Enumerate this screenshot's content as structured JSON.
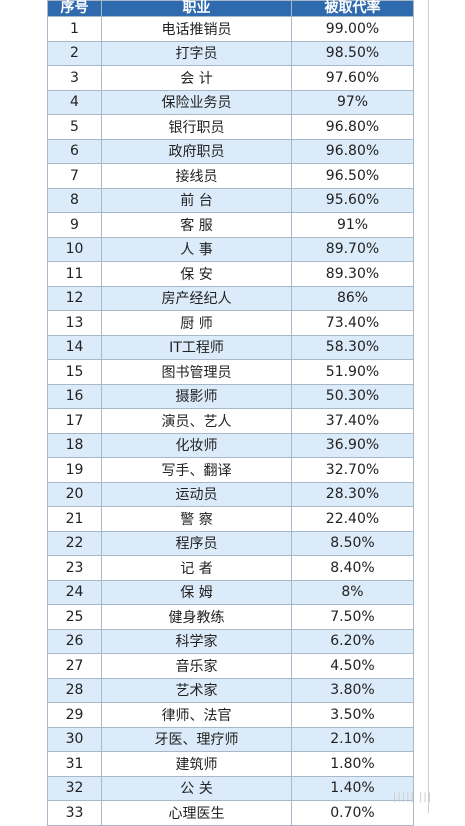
{
  "headers": [
    "序号",
    "职业",
    "被取代率"
  ],
  "rows": [
    [
      "1",
      "电话推销员",
      "99.00%"
    ],
    [
      "2",
      "打字员",
      "98.50%"
    ],
    [
      "3",
      "会 计",
      "97.60%"
    ],
    [
      "4",
      "保险业务员",
      "97%"
    ],
    [
      "5",
      "银行职员",
      "96.80%"
    ],
    [
      "6",
      "政府职员",
      "96.80%"
    ],
    [
      "7",
      "接线员",
      "96.50%"
    ],
    [
      "8",
      "前 台",
      "95.60%"
    ],
    [
      "9",
      "客 服",
      "91%"
    ],
    [
      "10",
      "人 事",
      "89.70%"
    ],
    [
      "11",
      "保 安",
      "89.30%"
    ],
    [
      "12",
      "房产经纪人",
      "86%"
    ],
    [
      "13",
      "厨 师",
      "73.40%"
    ],
    [
      "14",
      "IT工程师",
      "58.30%"
    ],
    [
      "15",
      "图书管理员",
      "51.90%"
    ],
    [
      "16",
      "摄影师",
      "50.30%"
    ],
    [
      "17",
      "演员、艺人",
      "37.40%"
    ],
    [
      "18",
      "化妆师",
      "36.90%"
    ],
    [
      "19",
      "写手、翻译",
      "32.70%"
    ],
    [
      "20",
      "运动员",
      "28.30%"
    ],
    [
      "21",
      "警 察",
      "22.40%"
    ],
    [
      "22",
      "程序员",
      "8.50%"
    ],
    [
      "23",
      "记 者",
      "8.40%"
    ],
    [
      "24",
      "保 姆",
      "8%"
    ],
    [
      "25",
      "健身教练",
      "7.50%"
    ],
    [
      "26",
      "科学家",
      "6.20%"
    ],
    [
      "27",
      "音乐家",
      "4.50%"
    ],
    [
      "28",
      "艺术家",
      "3.80%"
    ],
    [
      "29",
      "律师、法官",
      "3.50%"
    ],
    [
      "30",
      "牙医、理疗师",
      "2.10%"
    ],
    [
      "31",
      "建筑师",
      "1.80%"
    ],
    [
      "32",
      "公 关",
      "1.40%"
    ],
    [
      "33",
      "心理医生",
      "0.70%"
    ]
  ],
  "watermark": "||||| |||",
  "colors": {
    "header_bg": "#2e6aad",
    "stripe": "#dcebf9"
  }
}
